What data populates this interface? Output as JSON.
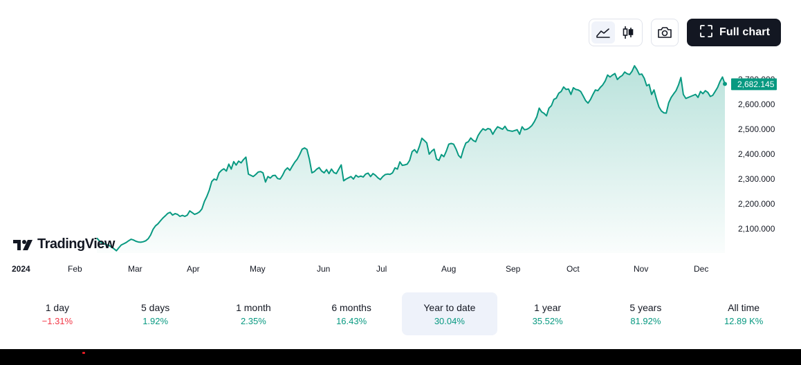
{
  "toolbar": {
    "area_icon": "area-chart-icon",
    "candle_icon": "candlestick-icon",
    "camera_icon": "camera-icon",
    "fullscreen_icon": "fullscreen-icon",
    "full_chart_label": "Full chart"
  },
  "logo": {
    "text": "TradingView"
  },
  "colors": {
    "line": "#089981",
    "fill_top": "#089981",
    "price_tag": "#089981",
    "negative": "#f23645",
    "dark": "#131722"
  },
  "chart_data": {
    "type": "area",
    "title": "",
    "xlabel": "",
    "ylabel": "",
    "ylim": [
      2030,
      2750
    ],
    "y_ticks": [
      2100,
      2200,
      2300,
      2400,
      2500,
      2600,
      2700
    ],
    "y_tick_labels": [
      "2,100.000",
      "2,200.000",
      "2,300.000",
      "2,400.000",
      "2,500.000",
      "2,600.000",
      "2,700.000"
    ],
    "year_label": "2024",
    "month_labels": [
      "Feb",
      "Mar",
      "Apr",
      "May",
      "Jun",
      "Jul",
      "Aug",
      "Sep",
      "Oct",
      "Nov",
      "Dec"
    ],
    "last_value": 2682.145,
    "last_value_label": "2,682.145",
    "series": [
      {
        "values": [
          2063,
          2052,
          2044,
          2040,
          2036,
          2033,
          2027,
          2020,
          2012,
          2024,
          2035,
          2040,
          2045,
          2052,
          2058,
          2055,
          2050,
          2047,
          2046,
          2048,
          2052,
          2060,
          2075,
          2098,
          2112,
          2120,
          2132,
          2143,
          2152,
          2162,
          2166,
          2155,
          2161,
          2158,
          2150,
          2154,
          2150,
          2155,
          2172,
          2165,
          2158,
          2162,
          2168,
          2180,
          2210,
          2230,
          2255,
          2290,
          2300,
          2296,
          2325,
          2335,
          2341,
          2332,
          2360,
          2340,
          2370,
          2356,
          2372,
          2365,
          2378,
          2388,
          2320,
          2315,
          2310,
          2318,
          2328,
          2330,
          2325,
          2288,
          2310,
          2304,
          2314,
          2315,
          2302,
          2300,
          2315,
          2335,
          2345,
          2335,
          2352,
          2368,
          2380,
          2398,
          2420,
          2425,
          2419,
          2378,
          2325,
          2330,
          2340,
          2346,
          2332,
          2325,
          2338,
          2322,
          2340,
          2326,
          2322,
          2340,
          2357,
          2293,
          2300,
          2305,
          2310,
          2300,
          2315,
          2308,
          2312,
          2308,
          2320,
          2324,
          2310,
          2322,
          2315,
          2305,
          2298,
          2310,
          2318,
          2320,
          2319,
          2325,
          2345,
          2340,
          2369,
          2355,
          2357,
          2360,
          2375,
          2410,
          2418,
          2405,
          2432,
          2464,
          2455,
          2445,
          2400,
          2412,
          2420,
          2380,
          2375,
          2398,
          2390,
          2412,
          2440,
          2443,
          2440,
          2420,
          2395,
          2385,
          2420,
          2445,
          2450,
          2465,
          2455,
          2450,
          2475,
          2490,
          2502,
          2496,
          2503,
          2500,
          2480,
          2497,
          2510,
          2505,
          2500,
          2512,
          2496,
          2494,
          2492,
          2495,
          2498,
          2480,
          2510,
          2498,
          2500,
          2506,
          2515,
          2530,
          2550,
          2585,
          2570,
          2564,
          2554,
          2585,
          2595,
          2620,
          2625,
          2645,
          2652,
          2670,
          2660,
          2662,
          2640,
          2667,
          2660,
          2658,
          2652,
          2634,
          2615,
          2605,
          2620,
          2640,
          2658,
          2655,
          2668,
          2678,
          2694,
          2718,
          2710,
          2718,
          2724,
          2700,
          2710,
          2716,
          2730,
          2723,
          2720,
          2733,
          2755,
          2740,
          2720,
          2722,
          2705,
          2675,
          2680,
          2640,
          2658,
          2621,
          2590,
          2574,
          2566,
          2565,
          2606,
          2628,
          2642,
          2655,
          2678,
          2708,
          2640,
          2624,
          2628,
          2632,
          2636,
          2640,
          2628,
          2652,
          2643,
          2655,
          2648,
          2632,
          2636,
          2652,
          2668,
          2692,
          2710,
          2682
        ]
      }
    ]
  },
  "periods": [
    {
      "label": "1 day",
      "value": "−1.31%",
      "dir": "down"
    },
    {
      "label": "5 days",
      "value": "1.92%",
      "dir": "up"
    },
    {
      "label": "1 month",
      "value": "2.35%",
      "dir": "up"
    },
    {
      "label": "6 months",
      "value": "16.43%",
      "dir": "up"
    },
    {
      "label": "Year to date",
      "value": "30.04%",
      "dir": "up",
      "active": true
    },
    {
      "label": "1 year",
      "value": "35.52%",
      "dir": "up"
    },
    {
      "label": "5 years",
      "value": "81.92%",
      "dir": "up"
    },
    {
      "label": "All time",
      "value": "12.89 K%",
      "dir": "up"
    }
  ]
}
